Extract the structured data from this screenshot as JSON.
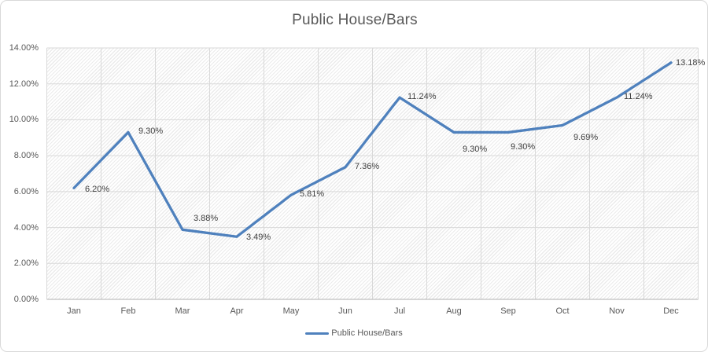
{
  "colors": {
    "line": "#4F81BD",
    "title_text": "#595959",
    "axis_text": "#595959",
    "data_label_text": "#404040",
    "gridline": "#d9d9d9",
    "axis_line": "#bfbfbf",
    "frame_border": "#d9d9d9",
    "hatch_line": "#ebebeb",
    "background": "#ffffff"
  },
  "chart_data": {
    "type": "line",
    "title": "Public House/Bars",
    "categories": [
      "Jan",
      "Feb",
      "Mar",
      "Apr",
      "May",
      "Jun",
      "Jul",
      "Aug",
      "Sep",
      "Oct",
      "Nov",
      "Dec"
    ],
    "series": [
      {
        "name": "Public House/Bars",
        "values": [
          6.2,
          9.3,
          3.88,
          3.49,
          5.81,
          7.36,
          11.24,
          9.3,
          9.3,
          9.69,
          11.24,
          13.18
        ],
        "color": "#4F81BD"
      }
    ],
    "data_labels": [
      "6.20%",
      "9.30%",
      "3.88%",
      "3.49%",
      "5.81%",
      "7.36%",
      "11.24%",
      "9.30%",
      "9.30%",
      "9.69%",
      "11.24%",
      "13.18%"
    ],
    "y_tick_labels": [
      "0.00%",
      "2.00%",
      "4.00%",
      "6.00%",
      "8.00%",
      "10.00%",
      "12.00%",
      "14.00%"
    ],
    "xlabel": "",
    "ylabel": "",
    "ylim": [
      0,
      14
    ],
    "y_tick_step": 2,
    "grid": true,
    "plot_background": "diagonal-hatch",
    "legend_position": "bottom"
  }
}
